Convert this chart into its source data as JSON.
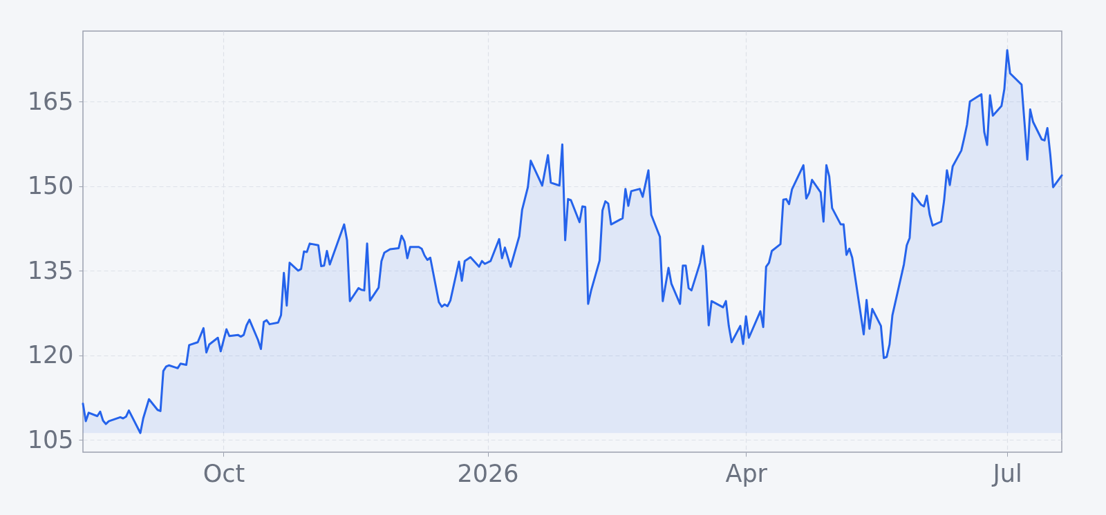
{
  "chart_data": {
    "type": "area",
    "x": [
      "2025-08-13",
      "2025-08-14",
      "2025-08-15",
      "2025-08-18",
      "2025-08-19",
      "2025-08-20",
      "2025-08-21",
      "2025-08-22",
      "2025-08-26",
      "2025-08-27",
      "2025-08-28",
      "2025-08-29",
      "2025-09-02",
      "2025-09-03",
      "2025-09-05",
      "2025-09-08",
      "2025-09-09",
      "2025-09-10",
      "2025-09-11",
      "2025-09-12",
      "2025-09-15",
      "2025-09-16",
      "2025-09-18",
      "2025-09-19",
      "2025-09-22",
      "2025-09-24",
      "2025-09-25",
      "2025-09-26",
      "2025-09-29",
      "2025-09-30",
      "2025-10-02",
      "2025-10-03",
      "2025-10-06",
      "2025-10-07",
      "2025-10-08",
      "2025-10-09",
      "2025-10-10",
      "2025-10-13",
      "2025-10-14",
      "2025-10-15",
      "2025-10-16",
      "2025-10-17",
      "2025-10-20",
      "2025-10-21",
      "2025-10-22",
      "2025-10-23",
      "2025-10-24",
      "2025-10-27",
      "2025-10-28",
      "2025-10-29",
      "2025-10-30",
      "2025-10-31",
      "2025-11-03",
      "2025-11-04",
      "2025-11-05",
      "2025-11-06",
      "2025-11-07",
      "2025-11-12",
      "2025-11-13",
      "2025-11-14",
      "2025-11-17",
      "2025-11-18",
      "2025-11-19",
      "2025-11-20",
      "2025-11-21",
      "2025-11-24",
      "2025-11-25",
      "2025-11-26",
      "2025-11-28",
      "2025-12-01",
      "2025-12-02",
      "2025-12-03",
      "2025-12-04",
      "2025-12-05",
      "2025-12-08",
      "2025-12-09",
      "2025-12-10",
      "2025-12-11",
      "2025-12-12",
      "2025-12-15",
      "2025-12-16",
      "2025-12-17",
      "2025-12-18",
      "2025-12-19",
      "2025-12-22",
      "2025-12-23",
      "2025-12-24",
      "2025-12-26",
      "2025-12-29",
      "2025-12-30",
      "2025-12-31",
      "2026-01-02",
      "2026-01-05",
      "2026-01-06",
      "2026-01-07",
      "2026-01-09",
      "2026-01-12",
      "2026-01-13",
      "2026-01-15",
      "2026-01-16",
      "2026-01-20",
      "2026-01-22",
      "2026-01-23",
      "2026-01-26",
      "2026-01-27",
      "2026-01-28",
      "2026-01-29",
      "2026-01-30",
      "2026-02-02",
      "2026-02-03",
      "2026-02-04",
      "2026-02-05",
      "2026-02-06",
      "2026-02-09",
      "2026-02-10",
      "2026-02-11",
      "2026-02-12",
      "2026-02-13",
      "2026-02-17",
      "2026-02-18",
      "2026-02-19",
      "2026-02-20",
      "2026-02-23",
      "2026-02-24",
      "2026-02-26",
      "2026-02-27",
      "2026-03-02",
      "2026-03-03",
      "2026-03-05",
      "2026-03-06",
      "2026-03-09",
      "2026-03-10",
      "2026-03-11",
      "2026-03-12",
      "2026-03-13",
      "2026-03-16",
      "2026-03-17",
      "2026-03-18",
      "2026-03-19",
      "2026-03-20",
      "2026-03-24",
      "2026-03-25",
      "2026-03-26",
      "2026-03-27",
      "2026-03-30",
      "2026-03-31",
      "2026-04-01",
      "2026-04-02",
      "2026-04-06",
      "2026-04-07",
      "2026-04-08",
      "2026-04-09",
      "2026-04-10",
      "2026-04-13",
      "2026-04-14",
      "2026-04-15",
      "2026-04-16",
      "2026-04-17",
      "2026-04-21",
      "2026-04-22",
      "2026-04-23",
      "2026-04-24",
      "2026-04-27",
      "2026-04-28",
      "2026-04-29",
      "2026-04-30",
      "2026-05-01",
      "2026-05-04",
      "2026-05-05",
      "2026-05-06",
      "2026-05-07",
      "2026-05-08",
      "2026-05-12",
      "2026-05-13",
      "2026-05-14",
      "2026-05-15",
      "2026-05-18",
      "2026-05-19",
      "2026-05-20",
      "2026-05-21",
      "2026-05-22",
      "2026-05-26",
      "2026-05-27",
      "2026-05-28",
      "2026-05-29",
      "2026-06-01",
      "2026-06-02",
      "2026-06-03",
      "2026-06-04",
      "2026-06-05",
      "2026-06-08",
      "2026-06-09",
      "2026-06-10",
      "2026-06-11",
      "2026-06-12",
      "2026-06-15",
      "2026-06-16",
      "2026-06-17",
      "2026-06-18",
      "2026-06-22",
      "2026-06-23",
      "2026-06-24",
      "2026-06-25",
      "2026-06-26",
      "2026-06-29",
      "2026-06-30",
      "2026-07-01",
      "2026-07-02",
      "2026-07-06",
      "2026-07-07",
      "2026-07-08",
      "2026-07-09",
      "2026-07-10",
      "2026-07-13",
      "2026-07-14",
      "2026-07-15",
      "2026-07-16",
      "2026-07-17",
      "2026-07-20"
    ],
    "series": [
      {
        "color": "#2563eb",
        "values": [
          111.4,
          108.3,
          109.8,
          109.2,
          110.0,
          108.4,
          107.8,
          108.3,
          109.0,
          108.8,
          109.1,
          110.2,
          106.2,
          108.8,
          112.2,
          110.3,
          110.1,
          117.2,
          118.0,
          118.2,
          117.7,
          118.5,
          118.3,
          121.8,
          122.3,
          124.8,
          120.5,
          121.9,
          123.1,
          120.7,
          124.6,
          123.4,
          123.6,
          123.3,
          123.6,
          125.3,
          126.3,
          122.7,
          121.1,
          125.9,
          126.2,
          125.5,
          125.8,
          127.1,
          134.6,
          128.8,
          136.4,
          135.0,
          135.3,
          138.4,
          138.3,
          139.8,
          139.5,
          135.8,
          135.9,
          138.5,
          136.1,
          143.2,
          140.4,
          129.6,
          131.9,
          131.6,
          131.5,
          139.8,
          129.7,
          132.0,
          136.7,
          138.2,
          138.8,
          139.0,
          141.2,
          140.2,
          137.2,
          139.2,
          139.2,
          138.9,
          137.7,
          136.9,
          137.3,
          129.4,
          128.6,
          129.0,
          128.7,
          129.7,
          136.6,
          133.2,
          136.7,
          137.4,
          135.7,
          136.7,
          136.2,
          136.7,
          140.6,
          137.2,
          139.1,
          135.7,
          141.1,
          145.8,
          149.8,
          154.5,
          150.1,
          155.5,
          150.6,
          150.1,
          157.4,
          140.4,
          147.7,
          147.5,
          143.6,
          146.4,
          146.3,
          129.1,
          131.4,
          136.8,
          145.7,
          147.3,
          146.9,
          143.2,
          144.3,
          149.5,
          146.5,
          149.1,
          149.5,
          148.1,
          152.8,
          144.9,
          141.0,
          129.6,
          135.5,
          132.7,
          129.1,
          135.9,
          135.9,
          131.9,
          131.5,
          136.4,
          139.4,
          134.9,
          125.3,
          129.6,
          128.5,
          129.6,
          125.2,
          122.3,
          125.2,
          122.0,
          126.9,
          123.1,
          127.8,
          125.0,
          135.7,
          136.4,
          138.5,
          139.7,
          147.6,
          147.7,
          146.8,
          149.4,
          153.7,
          147.8,
          148.8,
          151.1,
          148.9,
          143.7,
          153.7,
          151.7,
          146.1,
          143.2,
          143.2,
          137.8,
          138.9,
          137.3,
          123.7,
          129.8,
          124.7,
          128.2,
          125.2,
          119.5,
          119.7,
          121.9,
          127.1,
          136.1,
          139.5,
          140.8,
          148.7,
          146.7,
          146.4,
          148.3,
          144.9,
          143.0,
          143.7,
          147.4,
          152.8,
          150.2,
          153.5,
          156.3,
          158.5,
          160.9,
          165.0,
          166.3,
          159.6,
          157.3,
          166.1,
          162.5,
          164.2,
          167.2,
          174.1,
          170.0,
          168.0,
          161.4,
          154.7,
          163.6,
          161.4,
          158.3,
          158.1,
          160.3,
          155.6,
          149.8,
          151.9
        ]
      }
    ],
    "xlim": [
      "2025-08-13",
      "2026-07-20"
    ],
    "ylim": [
      102.8,
      177.5
    ],
    "xticks": [
      {
        "value": "2025-10-01",
        "label": "Oct"
      },
      {
        "value": "2026-01-01",
        "label": "2026"
      },
      {
        "value": "2026-04-01",
        "label": "Apr"
      },
      {
        "value": "2026-07-01",
        "label": "Jul"
      }
    ],
    "yticks": [
      105,
      120,
      135,
      150,
      165
    ],
    "grid": true
  }
}
